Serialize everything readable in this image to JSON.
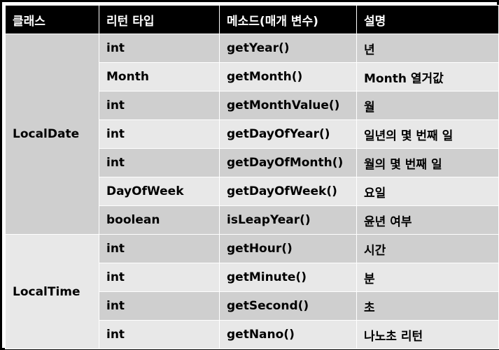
{
  "header": {
    "col_class": "클래스",
    "col_return_type": "리턴 타입",
    "col_method": "메소드(매개 변수)",
    "col_description": "설명"
  },
  "groups": [
    {
      "class_name": "LocalDate",
      "rows": [
        {
          "return_type": "int",
          "method": "getYear()",
          "description": "년"
        },
        {
          "return_type": "Month",
          "method": "getMonth()",
          "description": "Month 열거값"
        },
        {
          "return_type": "int",
          "method": "getMonthValue()",
          "description": "월"
        },
        {
          "return_type": "int",
          "method": "getDayOfYear()",
          "description": "일년의 몇 번째 일"
        },
        {
          "return_type": "int",
          "method": "getDayOfMonth()",
          "description": "월의 몇 번째 일"
        },
        {
          "return_type": "DayOfWeek",
          "method": "getDayOfWeek()",
          "description": "요일"
        },
        {
          "return_type": "boolean",
          "method": "isLeapYear()",
          "description": "윤년 여부"
        }
      ]
    },
    {
      "class_name": "LocalTime",
      "rows": [
        {
          "return_type": "int",
          "method": "getHour()",
          "description": "시간"
        },
        {
          "return_type": "int",
          "method": "getMinute()",
          "description": "분"
        },
        {
          "return_type": "int",
          "method": "getSecond()",
          "description": "초"
        },
        {
          "return_type": "int",
          "method": "getNano()",
          "description": "나노초 리턴"
        }
      ]
    }
  ],
  "colors": {
    "header_bg": "#000000",
    "header_text": "#ffffff",
    "row_dark": "#cfcfcf",
    "row_light": "#e8e8e8"
  }
}
